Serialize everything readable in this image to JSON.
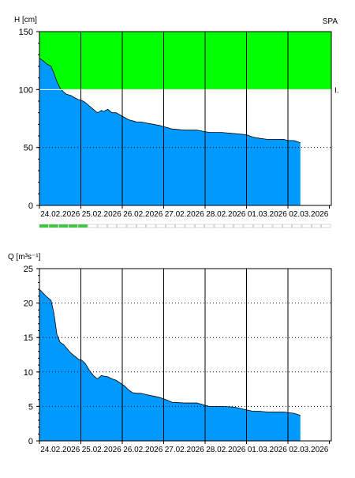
{
  "colors": {
    "fill": "#0099ff",
    "flood_zone": "#00ff00",
    "frame": "#000000",
    "progress_filled": "#33cc33",
    "progress_empty": "#ffffff"
  },
  "progress": {
    "segments": 30,
    "filled": 5
  },
  "chart_data": [
    {
      "type": "area",
      "ylabel": "H [cm]",
      "corner_label": "SPA",
      "threshold_label": "I.",
      "threshold": 100,
      "ylim": [
        0,
        150
      ],
      "yticks": [
        0,
        50,
        100,
        150
      ],
      "ytick_labels": [
        "0",
        "50",
        "100",
        "150"
      ],
      "dotted_levels": [
        50
      ],
      "grid": "vertical at midnight",
      "x_labels": [
        "24.02.2026",
        "25.02.2026",
        "26.02.2026",
        "27.02.2026",
        "28.02.2026",
        "01.03.2026",
        "02.03.2026"
      ],
      "x_range_days": [
        0,
        7
      ],
      "series": [
        {
          "x": [
            0,
            0.08,
            0.18,
            0.28,
            0.35,
            0.42,
            0.5,
            0.58,
            0.65,
            0.75,
            0.85,
            0.95,
            1.0,
            1.1,
            1.2,
            1.3,
            1.4,
            1.5,
            1.55,
            1.65,
            1.75,
            1.85,
            1.95,
            2.05,
            2.15,
            2.25,
            2.35,
            2.45,
            2.6,
            2.75,
            2.9,
            3.0,
            3.2,
            3.5,
            3.8,
            4.1,
            4.4,
            4.7,
            5.0,
            5.15,
            5.3,
            5.5,
            5.7,
            5.9,
            6.0,
            6.15,
            6.3
          ],
          "y": [
            127,
            125,
            122,
            120,
            114,
            107,
            101,
            98,
            96,
            95,
            93,
            91,
            91,
            89,
            86,
            83,
            80,
            82,
            81,
            83,
            80,
            80,
            78,
            76,
            74,
            73,
            72,
            72,
            71,
            70,
            69,
            68,
            66,
            65,
            65,
            63,
            63,
            62,
            61,
            59,
            58,
            57,
            57,
            57,
            56,
            56,
            54
          ]
        }
      ]
    },
    {
      "type": "area",
      "ylabel": "Q [m³s⁻¹]",
      "ylim": [
        0,
        25
      ],
      "yticks": [
        0,
        5,
        10,
        15,
        20,
        25
      ],
      "ytick_labels": [
        "0",
        "5",
        "10",
        "15",
        "20",
        "25"
      ],
      "dotted_levels": [
        5,
        10,
        15,
        20
      ],
      "grid": "vertical at midnight",
      "x_labels": [
        "24.02.2026",
        "25.02.2026",
        "26.02.2026",
        "27.02.2026",
        "28.02.2026",
        "01.03.2026",
        "02.03.2026"
      ],
      "x_range_days": [
        0,
        7
      ],
      "series": [
        {
          "x": [
            0,
            0.08,
            0.18,
            0.28,
            0.35,
            0.42,
            0.5,
            0.58,
            0.65,
            0.75,
            0.85,
            0.95,
            1.0,
            1.1,
            1.2,
            1.3,
            1.4,
            1.5,
            1.55,
            1.65,
            1.75,
            1.85,
            1.95,
            2.05,
            2.15,
            2.25,
            2.35,
            2.45,
            2.6,
            2.75,
            2.9,
            3.0,
            3.2,
            3.5,
            3.8,
            4.1,
            4.4,
            4.7,
            5.0,
            5.15,
            5.3,
            5.5,
            5.7,
            5.9,
            6.0,
            6.15,
            6.3
          ],
          "y": [
            22.0,
            21.5,
            20.9,
            20.4,
            18.5,
            15.5,
            14.3,
            14.0,
            13.5,
            12.8,
            12.3,
            11.8,
            11.8,
            11.3,
            10.3,
            9.5,
            9.0,
            9.5,
            9.4,
            9.3,
            9.0,
            8.8,
            8.4,
            8.0,
            7.4,
            7.0,
            6.9,
            6.9,
            6.7,
            6.5,
            6.3,
            6.1,
            5.6,
            5.5,
            5.5,
            5.0,
            5.0,
            4.9,
            4.5,
            4.3,
            4.3,
            4.2,
            4.2,
            4.2,
            4.1,
            4.0,
            3.7
          ]
        }
      ]
    }
  ]
}
